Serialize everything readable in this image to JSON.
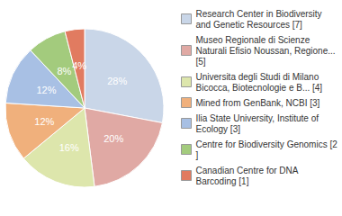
{
  "chart_data": {
    "type": "pie",
    "categories": [
      "Research Center in Biodiversity and Genetic Resources [7]",
      "Museo Regionale di Scienze Naturali Efisio Noussan, Regione... [5]",
      "Universita degli Studi di Milano Bicocca, Biotecnologie e B... [4]",
      "Mined from GenBank, NCBI [3]",
      "Ilia State University, Institute of Ecology [3]",
      "Centre for Biodiversity Genomics [2]",
      "Canadian Centre for DNA Barcoding [1]"
    ],
    "values": [
      28,
      20,
      16,
      12,
      12,
      8,
      4
    ],
    "value_labels": [
      "28%",
      "20%",
      "16%",
      "12%",
      "12%",
      "8%",
      "4%"
    ],
    "colors": [
      "#c9d6e8",
      "#e0a9a4",
      "#dde6ac",
      "#f0b07c",
      "#a8c0e4",
      "#a3cb7d",
      "#e17b60"
    ],
    "data_labels": true,
    "legend": "right"
  }
}
